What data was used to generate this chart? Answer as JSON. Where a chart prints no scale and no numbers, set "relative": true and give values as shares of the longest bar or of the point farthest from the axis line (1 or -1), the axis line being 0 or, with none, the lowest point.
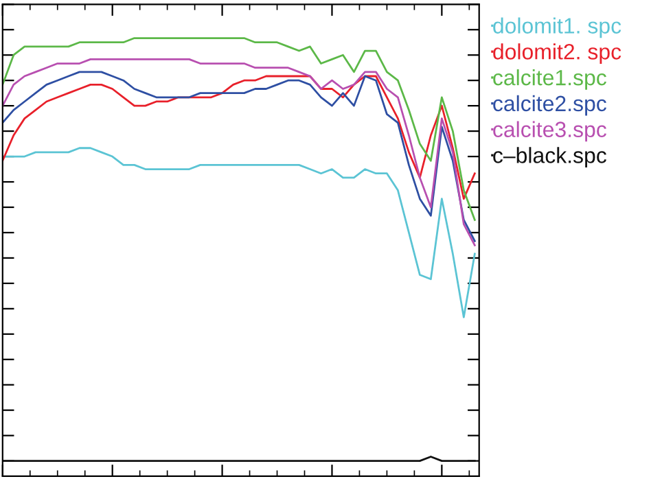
{
  "chart_data": {
    "type": "line",
    "relative": true,
    "grid": false,
    "legend": "right",
    "marker": "none",
    "line_style": "solid",
    "categories": [
      null,
      null,
      null,
      null,
      null,
      null,
      null,
      null,
      null,
      null,
      null,
      null,
      null,
      null,
      null,
      null,
      null,
      null,
      null,
      null,
      null,
      null,
      null,
      null,
      null,
      null,
      null,
      null,
      null,
      null,
      null,
      null,
      null,
      null,
      null,
      null,
      null,
      null,
      null,
      null,
      null,
      null,
      null,
      null
    ],
    "series": [
      {
        "name": "dolomit1. spc",
        "color": "#5bc4d4",
        "values": [
          0.72,
          0.72,
          0.72,
          0.73,
          0.73,
          0.73,
          0.73,
          0.74,
          0.74,
          0.73,
          0.72,
          0.7,
          0.7,
          0.69,
          0.69,
          0.69,
          0.69,
          0.69,
          0.7,
          0.7,
          0.7,
          0.7,
          0.7,
          0.7,
          0.7,
          0.7,
          0.7,
          0.7,
          0.69,
          0.68,
          0.69,
          0.67,
          0.67,
          0.69,
          0.68,
          0.68,
          0.64,
          0.54,
          0.44,
          0.43,
          0.62,
          0.49,
          0.34,
          0.49
        ]
      },
      {
        "name": "dolomit2. spc",
        "color": "#e8202a",
        "values": [
          0.71,
          0.77,
          0.81,
          0.83,
          0.85,
          0.86,
          0.87,
          0.88,
          0.89,
          0.89,
          0.88,
          0.86,
          0.84,
          0.84,
          0.85,
          0.85,
          0.86,
          0.86,
          0.86,
          0.86,
          0.87,
          0.89,
          0.9,
          0.9,
          0.91,
          0.91,
          0.91,
          0.91,
          0.91,
          0.88,
          0.88,
          0.86,
          0.89,
          0.91,
          0.91,
          0.86,
          0.81,
          0.73,
          0.67,
          0.77,
          0.84,
          0.74,
          0.62,
          0.68
        ]
      },
      {
        "name": "calcite1.spc",
        "color": "#5cb848",
        "values": [
          0.89,
          0.96,
          0.98,
          0.98,
          0.98,
          0.98,
          0.98,
          0.99,
          0.99,
          0.99,
          0.99,
          0.99,
          1.0,
          1.0,
          1.0,
          1.0,
          1.0,
          1.0,
          1.0,
          1.0,
          1.0,
          1.0,
          1.0,
          0.99,
          0.99,
          0.99,
          0.98,
          0.97,
          0.98,
          0.94,
          0.95,
          0.96,
          0.92,
          0.97,
          0.97,
          0.92,
          0.9,
          0.83,
          0.75,
          0.71,
          0.86,
          0.78,
          0.64,
          0.57
        ]
      },
      {
        "name": "calcite2.spc",
        "color": "#2e4fa3",
        "values": [
          0.8,
          0.83,
          0.85,
          0.87,
          0.89,
          0.9,
          0.91,
          0.92,
          0.92,
          0.92,
          0.91,
          0.9,
          0.88,
          0.87,
          0.86,
          0.86,
          0.86,
          0.86,
          0.87,
          0.87,
          0.87,
          0.87,
          0.87,
          0.88,
          0.88,
          0.89,
          0.9,
          0.9,
          0.89,
          0.86,
          0.84,
          0.87,
          0.84,
          0.91,
          0.9,
          0.82,
          0.8,
          0.7,
          0.62,
          0.58,
          0.79,
          0.71,
          0.57,
          0.52
        ]
      },
      {
        "name": "calcite3.spc",
        "color": "#b84fb0",
        "values": [
          0.84,
          0.89,
          0.91,
          0.92,
          0.93,
          0.94,
          0.94,
          0.94,
          0.95,
          0.95,
          0.95,
          0.95,
          0.95,
          0.95,
          0.95,
          0.95,
          0.95,
          0.95,
          0.94,
          0.94,
          0.94,
          0.94,
          0.94,
          0.93,
          0.93,
          0.93,
          0.93,
          0.92,
          0.91,
          0.88,
          0.9,
          0.88,
          0.89,
          0.92,
          0.92,
          0.88,
          0.86,
          0.77,
          0.67,
          0.6,
          0.81,
          0.73,
          0.56,
          0.51
        ]
      },
      {
        "name": "c–black.spc",
        "color": "#111111",
        "values": [
          0,
          0,
          0,
          0,
          0,
          0,
          0,
          0,
          0,
          0,
          0,
          0,
          0,
          0,
          0,
          0,
          0,
          0,
          0,
          0,
          0,
          0,
          0,
          0,
          0,
          0,
          0,
          0,
          0,
          0,
          0,
          0,
          0,
          0,
          0,
          0,
          0,
          0,
          0,
          0.01,
          0,
          0,
          0,
          0
        ]
      }
    ]
  }
}
